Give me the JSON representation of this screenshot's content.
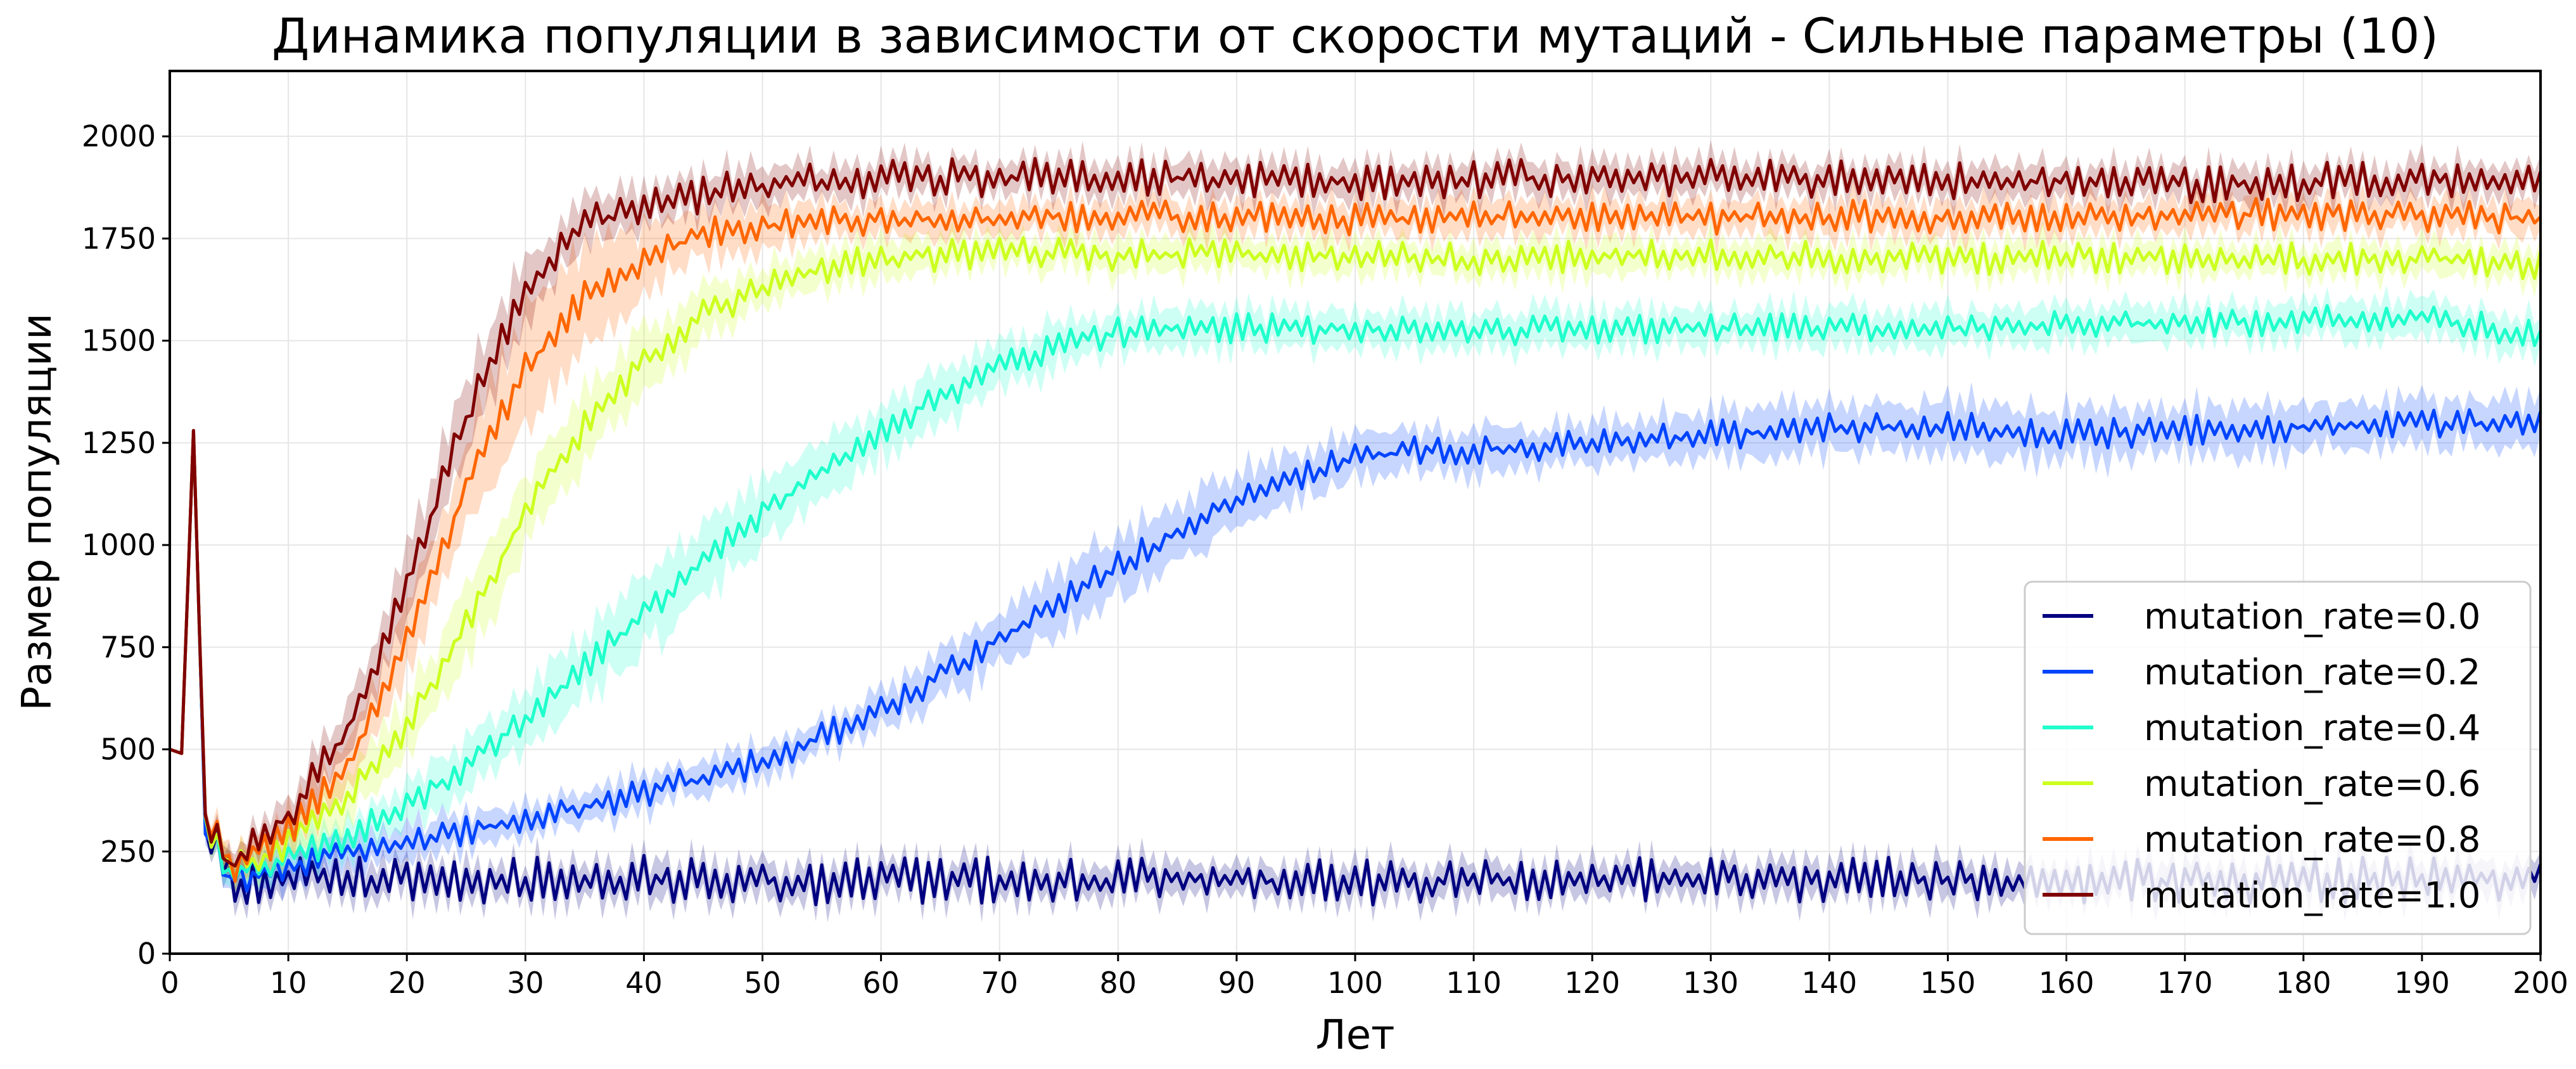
{
  "chart_data": {
    "type": "line",
    "title": "Динамика популяции в зависимости от скорости мутаций - Сильные параметры (10)",
    "xlabel": "Лет",
    "ylabel": "Размер популяции",
    "xlim": [
      0,
      200
    ],
    "ylim": [
      0,
      2160
    ],
    "xticks": [
      0,
      10,
      20,
      30,
      40,
      50,
      60,
      70,
      80,
      90,
      100,
      110,
      120,
      130,
      140,
      150,
      160,
      170,
      180,
      190,
      200
    ],
    "yticks": [
      0,
      250,
      500,
      750,
      1000,
      1250,
      1500,
      1750,
      2000
    ],
    "grid": true,
    "legend_position": "lower-right",
    "confidence_band": true,
    "series": [
      {
        "name": "mutation_rate=0.0",
        "color": "#000080",
        "x": [
          0,
          1,
          2,
          3,
          4,
          5,
          6,
          8,
          10,
          15,
          20,
          30,
          40,
          50,
          60,
          70,
          80,
          90,
          100,
          110,
          120,
          130,
          140,
          150,
          160,
          170,
          180,
          190,
          200
        ],
        "y": [
          500,
          490,
          1280,
          300,
          280,
          180,
          170,
          175,
          180,
          180,
          180,
          180,
          185,
          175,
          180,
          180,
          180,
          180,
          175,
          175,
          180,
          180,
          180,
          180,
          180,
          180,
          180,
          180,
          180
        ],
        "spread": [
          0,
          0,
          0,
          20,
          30,
          35,
          40,
          40,
          40,
          40,
          40,
          40,
          40,
          40,
          40,
          40,
          40,
          40,
          40,
          40,
          40,
          40,
          40,
          40,
          40,
          40,
          40,
          40,
          40
        ],
        "wobble": 55
      },
      {
        "name": "mutation_rate=0.2",
        "color": "#0044ff",
        "x": [
          0,
          1,
          2,
          3,
          4,
          5,
          6,
          8,
          10,
          15,
          20,
          25,
          30,
          35,
          40,
          45,
          50,
          55,
          60,
          65,
          70,
          75,
          80,
          85,
          90,
          95,
          100,
          105,
          110,
          115,
          120,
          130,
          140,
          150,
          160,
          170,
          180,
          190,
          200
        ],
        "y": [
          500,
          490,
          1280,
          290,
          260,
          180,
          185,
          195,
          210,
          250,
          275,
          300,
          330,
          360,
          390,
          430,
          470,
          530,
          600,
          680,
          770,
          860,
          950,
          1030,
          1110,
          1170,
          1210,
          1230,
          1235,
          1240,
          1250,
          1270,
          1285,
          1290,
          1270,
          1280,
          1290,
          1300,
          1290
        ],
        "spread": [
          0,
          0,
          0,
          20,
          30,
          35,
          40,
          40,
          40,
          40,
          40,
          40,
          40,
          40,
          40,
          40,
          40,
          40,
          45,
          55,
          70,
          75,
          75,
          75,
          70,
          60,
          55,
          50,
          50,
          50,
          50,
          55,
          60,
          60,
          60,
          55,
          55,
          55,
          55
        ],
        "wobble": 35
      },
      {
        "name": "mutation_rate=0.4",
        "color": "#20ffcc",
        "x": [
          0,
          1,
          2,
          3,
          4,
          5,
          6,
          8,
          10,
          15,
          20,
          25,
          30,
          35,
          40,
          45,
          50,
          55,
          60,
          65,
          70,
          75,
          80,
          85,
          90,
          100,
          110,
          120,
          130,
          140,
          150,
          160,
          170,
          180,
          190,
          200
        ],
        "y": [
          500,
          490,
          1280,
          295,
          270,
          190,
          200,
          215,
          235,
          290,
          360,
          460,
          580,
          700,
          830,
          960,
          1080,
          1180,
          1280,
          1360,
          1440,
          1490,
          1520,
          1530,
          1530,
          1530,
          1525,
          1530,
          1530,
          1530,
          1530,
          1540,
          1545,
          1550,
          1560,
          1510
        ],
        "spread": [
          0,
          0,
          0,
          20,
          30,
          35,
          40,
          40,
          40,
          45,
          50,
          60,
          70,
          80,
          90,
          85,
          80,
          70,
          60,
          60,
          55,
          55,
          50,
          50,
          45,
          45,
          45,
          45,
          45,
          45,
          45,
          45,
          45,
          45,
          45,
          45
        ],
        "wobble": 35
      },
      {
        "name": "mutation_rate=0.6",
        "color": "#ccff20",
        "x": [
          0,
          1,
          2,
          3,
          4,
          5,
          6,
          8,
          10,
          15,
          20,
          25,
          30,
          35,
          40,
          45,
          50,
          55,
          60,
          65,
          70,
          80,
          90,
          100,
          110,
          120,
          130,
          140,
          150,
          160,
          170,
          180,
          190,
          200
        ],
        "y": [
          500,
          490,
          1280,
          300,
          280,
          200,
          215,
          240,
          270,
          380,
          560,
          800,
          1080,
          1290,
          1450,
          1560,
          1630,
          1680,
          1700,
          1710,
          1715,
          1710,
          1710,
          1705,
          1700,
          1705,
          1710,
          1705,
          1700,
          1705,
          1700,
          1700,
          1700,
          1690
        ],
        "spread": [
          0,
          0,
          0,
          20,
          30,
          35,
          40,
          40,
          45,
          55,
          70,
          85,
          90,
          80,
          70,
          60,
          50,
          45,
          45,
          40,
          40,
          40,
          40,
          40,
          40,
          40,
          40,
          40,
          40,
          40,
          40,
          40,
          40,
          40
        ],
        "wobble": 38
      },
      {
        "name": "mutation_rate=0.8",
        "color": "#ff6600",
        "x": [
          0,
          1,
          2,
          3,
          4,
          5,
          6,
          8,
          10,
          15,
          20,
          25,
          30,
          35,
          40,
          45,
          50,
          55,
          60,
          70,
          80,
          90,
          100,
          110,
          120,
          130,
          140,
          150,
          160,
          170,
          180,
          190,
          200
        ],
        "y": [
          500,
          490,
          1280,
          300,
          285,
          205,
          225,
          255,
          300,
          460,
          760,
          1140,
          1430,
          1610,
          1700,
          1760,
          1780,
          1790,
          1795,
          1800,
          1805,
          1800,
          1795,
          1800,
          1800,
          1800,
          1805,
          1800,
          1800,
          1805,
          1810,
          1805,
          1800
        ],
        "spread": [
          0,
          0,
          0,
          20,
          30,
          35,
          40,
          40,
          45,
          60,
          90,
          120,
          130,
          110,
          80,
          60,
          50,
          45,
          40,
          40,
          40,
          40,
          40,
          40,
          40,
          40,
          40,
          40,
          40,
          40,
          40,
          40,
          40
        ],
        "wobble": 38
      },
      {
        "name": "mutation_rate=1.0",
        "color": "#800000",
        "x": [
          0,
          1,
          2,
          3,
          4,
          5,
          6,
          8,
          10,
          15,
          20,
          25,
          30,
          35,
          40,
          45,
          50,
          55,
          60,
          70,
          80,
          90,
          100,
          110,
          120,
          130,
          140,
          150,
          160,
          170,
          180,
          190,
          200
        ],
        "y": [
          500,
          490,
          1280,
          300,
          285,
          215,
          240,
          280,
          340,
          540,
          900,
          1310,
          1620,
          1780,
          1830,
          1860,
          1880,
          1890,
          1895,
          1900,
          1900,
          1895,
          1890,
          1895,
          1900,
          1900,
          1895,
          1890,
          1890,
          1885,
          1890,
          1895,
          1895
        ],
        "spread": [
          0,
          0,
          0,
          20,
          30,
          35,
          40,
          40,
          45,
          60,
          80,
          90,
          80,
          60,
          50,
          45,
          45,
          40,
          40,
          40,
          40,
          40,
          40,
          40,
          40,
          40,
          40,
          40,
          40,
          40,
          40,
          40,
          40
        ],
        "wobble": 45
      }
    ]
  }
}
